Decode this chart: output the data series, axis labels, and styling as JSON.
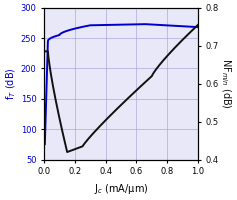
{
  "xlabel": "J$_c$ (mA/μm)",
  "ylabel_left": "f$_T$ (dB)",
  "ylabel_right": "NF$_{min}$ (dB)",
  "xlim": [
    0,
    1.0
  ],
  "ylim_left": [
    50,
    300
  ],
  "ylim_right": [
    0.4,
    0.8
  ],
  "xticks": [
    0,
    0.2,
    0.4,
    0.6,
    0.8,
    1.0
  ],
  "yticks_left": [
    50,
    100,
    150,
    200,
    250,
    300
  ],
  "yticks_right": [
    0.4,
    0.5,
    0.6,
    0.7,
    0.8
  ],
  "grid_color": "#aaaadd",
  "background_color": "#e8e8f8",
  "ft_color": "#0000cc",
  "nf_color": "#111111",
  "line_width": 1.4,
  "figwidth": 2.37,
  "figheight": 2.0,
  "dpi": 100
}
